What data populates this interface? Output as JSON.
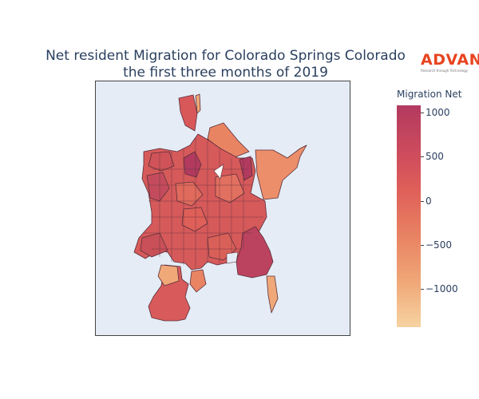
{
  "title_line1": "Net resident Migration for Colorado Springs Colorado",
  "title_line2": "the first three months of 2019",
  "logo": {
    "wordmark": "ADVAN",
    "tagline": "Research through Technology",
    "color": "#e8441f"
  },
  "colorbar": {
    "title": "Migration Net",
    "ticks": [
      "1000",
      "500",
      "0",
      "−500",
      "−1000"
    ],
    "tick_values": [
      1000,
      500,
      0,
      -500,
      -1000
    ],
    "range": [
      -1400,
      1100
    ],
    "colors": [
      "#f6d3a1",
      "#f0a878",
      "#e98463",
      "#df5f59",
      "#cc4a5d",
      "#b23a5f"
    ]
  },
  "map": {
    "background": "#e5ecf6",
    "boundary_color": "#5a2f3a"
  }
}
